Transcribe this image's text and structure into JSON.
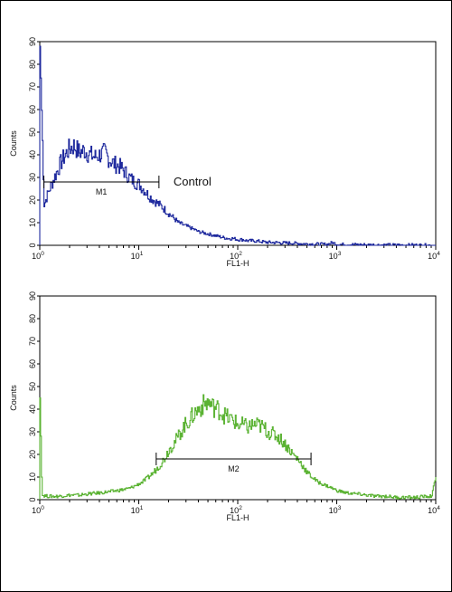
{
  "chart_data": [
    {
      "type": "line",
      "ylabel": "Counts",
      "xlabel": "FL1-H",
      "xscale": "log",
      "xlim": [
        1,
        10000
      ],
      "ylim": [
        0,
        90
      ],
      "xticks": [
        {
          "base": "10",
          "exp": "0"
        },
        {
          "base": "10",
          "exp": "1"
        },
        {
          "base": "10",
          "exp": "2"
        },
        {
          "base": "10",
          "exp": "3"
        },
        {
          "base": "10",
          "exp": "4"
        }
      ],
      "yticks": [
        "0",
        "10",
        "20",
        "30",
        "40",
        "50",
        "60",
        "70",
        "80",
        "90"
      ],
      "color": "#1f2a9e",
      "annotation": "Control",
      "gate": {
        "label": "M1",
        "x_start": 1.1,
        "x_end": 16,
        "y": 28
      },
      "series": [
        {
          "x": [
            1,
            1.1,
            1.25,
            1.4,
            1.6,
            1.8,
            2,
            2.2,
            2.5,
            2.8,
            3.2,
            3.6,
            4,
            4.5,
            5,
            5.6,
            6.3,
            7,
            8,
            9,
            10,
            11,
            12.5,
            14,
            16,
            18,
            20,
            22.5,
            25,
            28,
            32,
            36,
            40,
            45,
            50,
            56,
            63,
            70,
            80,
            90,
            100,
            112,
            125,
            140,
            160,
            180,
            200,
            250,
            300,
            350,
            400,
            500,
            630,
            800,
            900,
            1000,
            1500,
            2000,
            3000,
            5000,
            10000
          ],
          "y": [
            88,
            18,
            25,
            30,
            36,
            40,
            43,
            44,
            41,
            42,
            40,
            39,
            40,
            41,
            38,
            36,
            35,
            33,
            30,
            28,
            27,
            25,
            22,
            20,
            18,
            16,
            14,
            12,
            10,
            9,
            8,
            7,
            6,
            5.5,
            5,
            4.5,
            4,
            3.5,
            3,
            3,
            2.5,
            2.5,
            2,
            2,
            1.8,
            1.5,
            1.3,
            1.2,
            1,
            1,
            0.8,
            0.6,
            0.5,
            0.4,
            1.2,
            0.4,
            0.3,
            0.2,
            0.1,
            0.1,
            0
          ]
        }
      ]
    },
    {
      "type": "line",
      "ylabel": "Counts",
      "xlabel": "FL1-H",
      "xscale": "log",
      "xlim": [
        1,
        10000
      ],
      "ylim": [
        0,
        90
      ],
      "xticks": [
        {
          "base": "10",
          "exp": "0"
        },
        {
          "base": "10",
          "exp": "1"
        },
        {
          "base": "10",
          "exp": "2"
        },
        {
          "base": "10",
          "exp": "3"
        },
        {
          "base": "10",
          "exp": "4"
        }
      ],
      "yticks": [
        "0",
        "10",
        "20",
        "30",
        "40",
        "50",
        "60",
        "70",
        "80",
        "90"
      ],
      "color": "#5bb333",
      "gate": {
        "label": "M2",
        "x_start": 15,
        "x_end": 550,
        "y": 18
      },
      "series": [
        {
          "x": [
            1,
            1.05,
            1.2,
            1.5,
            2,
            2.5,
            3,
            4,
            5,
            6,
            7,
            8,
            9,
            10,
            11,
            12.5,
            14,
            16,
            18,
            20,
            22.5,
            25,
            28,
            32,
            36,
            40,
            45,
            50,
            56,
            63,
            70,
            80,
            90,
            100,
            112,
            125,
            140,
            160,
            180,
            200,
            225,
            250,
            280,
            320,
            360,
            400,
            450,
            500,
            560,
            630,
            700,
            800,
            900,
            1000,
            1250,
            1600,
            2000,
            2500,
            3200,
            4000,
            5000,
            6300,
            8000,
            9000,
            10000
          ],
          "y": [
            45,
            2,
            1.5,
            1.5,
            2,
            2,
            2.5,
            3,
            3.5,
            4,
            4.5,
            5,
            6,
            7,
            8,
            10,
            12,
            15,
            18,
            22,
            25,
            28,
            32,
            35,
            38,
            40,
            42,
            43,
            41,
            40,
            38,
            36,
            35,
            33,
            33,
            32,
            33,
            33,
            32,
            30,
            29,
            28,
            26,
            23,
            20,
            18,
            15,
            12,
            10,
            8,
            7,
            6,
            5,
            4,
            3,
            2.5,
            2,
            1.5,
            1.5,
            1,
            1,
            1,
            1.5,
            1.5,
            10
          ]
        }
      ]
    }
  ]
}
